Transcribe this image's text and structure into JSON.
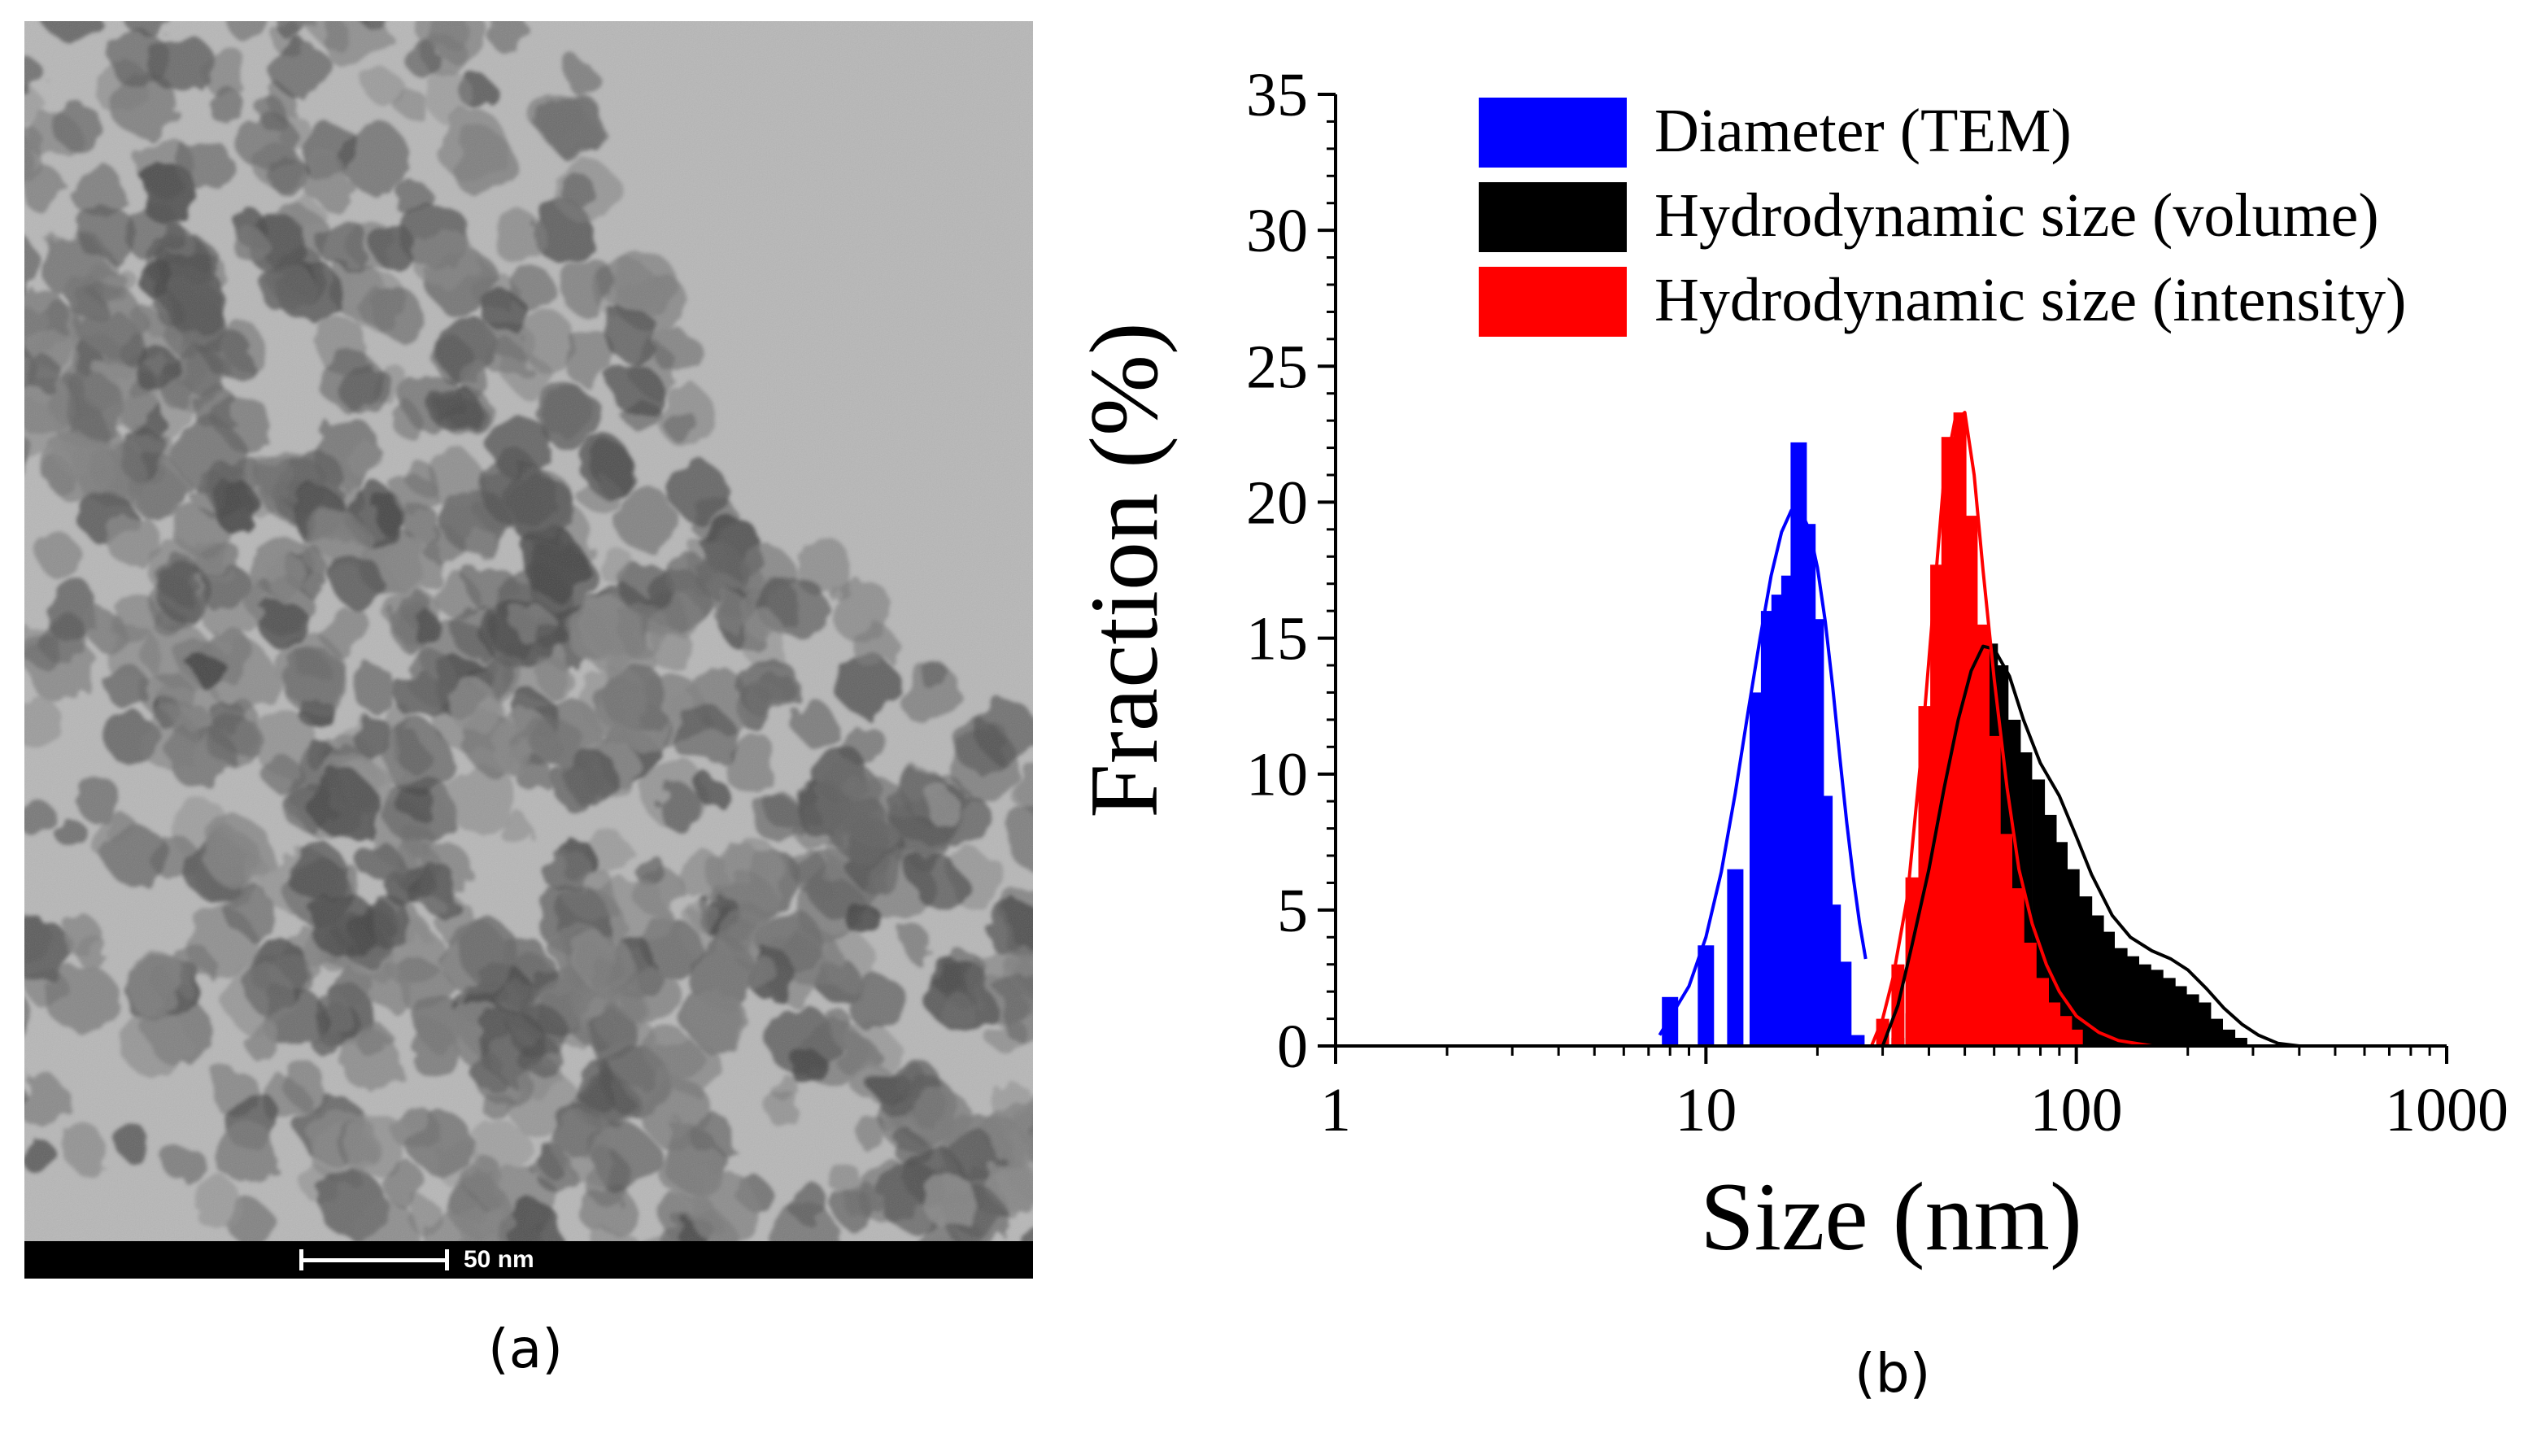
{
  "panels": {
    "a": {
      "label": "(a)",
      "scale_bar_text": "50 nm"
    },
    "b": {
      "label": "(b)"
    }
  },
  "chart_data": {
    "type": "bar",
    "title": "",
    "xlabel": "Size (nm)",
    "ylabel": "Fraction (%)",
    "xscale": "log",
    "xlim": [
      1,
      1000
    ],
    "ylim": [
      0,
      35
    ],
    "xticks": [
      1,
      10,
      100,
      1000
    ],
    "xtick_labels": [
      "1",
      "10",
      "100",
      "1000"
    ],
    "yticks": [
      0,
      5,
      10,
      15,
      20,
      25,
      30,
      35
    ],
    "ytick_labels": [
      "0",
      "5",
      "10",
      "15",
      "20",
      "25",
      "30",
      "35"
    ],
    "legend_position": "top-right",
    "series": [
      {
        "name": "Diameter (TEM)",
        "color": "#0000ff",
        "x": [
          8,
          10,
          12,
          13.8,
          14.8,
          15.8,
          16.8,
          17.8,
          18.8,
          19.8,
          20.9,
          22,
          23.5,
          25.5
        ],
        "values": [
          1.8,
          3.7,
          6.5,
          13,
          16,
          16.6,
          17.3,
          22.2,
          19.2,
          15.7,
          9.2,
          5.2,
          3.1,
          0.4
        ],
        "fit_x": [
          7.5,
          9,
          10,
          11,
          12,
          13,
          14,
          15,
          16,
          17,
          18,
          19,
          20,
          21,
          22,
          23,
          24,
          25,
          26,
          27
        ],
        "fit_y": [
          0.4,
          2.2,
          4,
          6.4,
          9.3,
          12.3,
          15,
          17.3,
          18.9,
          19.7,
          19.7,
          19,
          17.6,
          15.6,
          13.2,
          10.6,
          8.2,
          6.2,
          4.5,
          3.2
        ]
      },
      {
        "name": "Hydrodynamic size (volume)",
        "color": "#000000",
        "x": [
          33,
          36,
          39,
          42,
          45,
          48,
          51,
          55,
          59,
          63,
          68,
          73,
          79,
          85,
          91,
          98,
          106,
          114,
          122,
          132,
          142,
          153,
          165,
          178,
          191,
          206,
          222,
          239,
          258,
          278
        ],
        "values": [
          0.3,
          1.2,
          2.5,
          4.2,
          7,
          9.5,
          12,
          13.8,
          14.8,
          14,
          12,
          10.8,
          9.8,
          8.5,
          7.5,
          6.5,
          5.5,
          4.8,
          4.2,
          3.6,
          3.3,
          3,
          2.8,
          2.5,
          2.2,
          1.9,
          1.6,
          1,
          0.6,
          0.3
        ],
        "fit_x": [
          30,
          33,
          36,
          40,
          44,
          48,
          52,
          56,
          60,
          66,
          72,
          80,
          90,
          100,
          110,
          125,
          140,
          160,
          180,
          200,
          225,
          250,
          280,
          310,
          350,
          400,
          1000
        ],
        "fit_y": [
          0,
          1.5,
          3.7,
          6.5,
          9.5,
          12,
          13.8,
          14.7,
          14.6,
          13.6,
          12,
          10.4,
          9.2,
          7.7,
          6.3,
          4.8,
          4,
          3.5,
          3.2,
          2.8,
          2.1,
          1.4,
          0.8,
          0.4,
          0.1,
          0,
          0
        ]
      },
      {
        "name": "Hydrodynamic size (intensity)",
        "color": "#ff0000",
        "x": [
          30,
          33,
          36,
          39,
          42,
          45,
          48.5,
          52,
          56,
          60,
          64.5,
          69.5,
          75,
          81,
          87,
          93.5,
          100
        ],
        "values": [
          1,
          3,
          6.2,
          12.5,
          17.7,
          22.4,
          23.3,
          19.5,
          15.5,
          11.4,
          7.8,
          5.8,
          3.8,
          2.5,
          1.6,
          1.1,
          0.6
        ],
        "fit_x": [
          1,
          28,
          30,
          32,
          35,
          38,
          41,
          44,
          47,
          50,
          53,
          56,
          60,
          65,
          70,
          76,
          83,
          90,
          100,
          115,
          130,
          160,
          1000
        ],
        "fit_y": [
          0,
          0,
          1,
          2.5,
          5.5,
          10.5,
          16,
          21,
          23,
          23.3,
          21,
          17.5,
          13.5,
          9.5,
          6.5,
          4.5,
          3,
          2,
          1.1,
          0.5,
          0.2,
          0,
          0
        ]
      }
    ]
  }
}
